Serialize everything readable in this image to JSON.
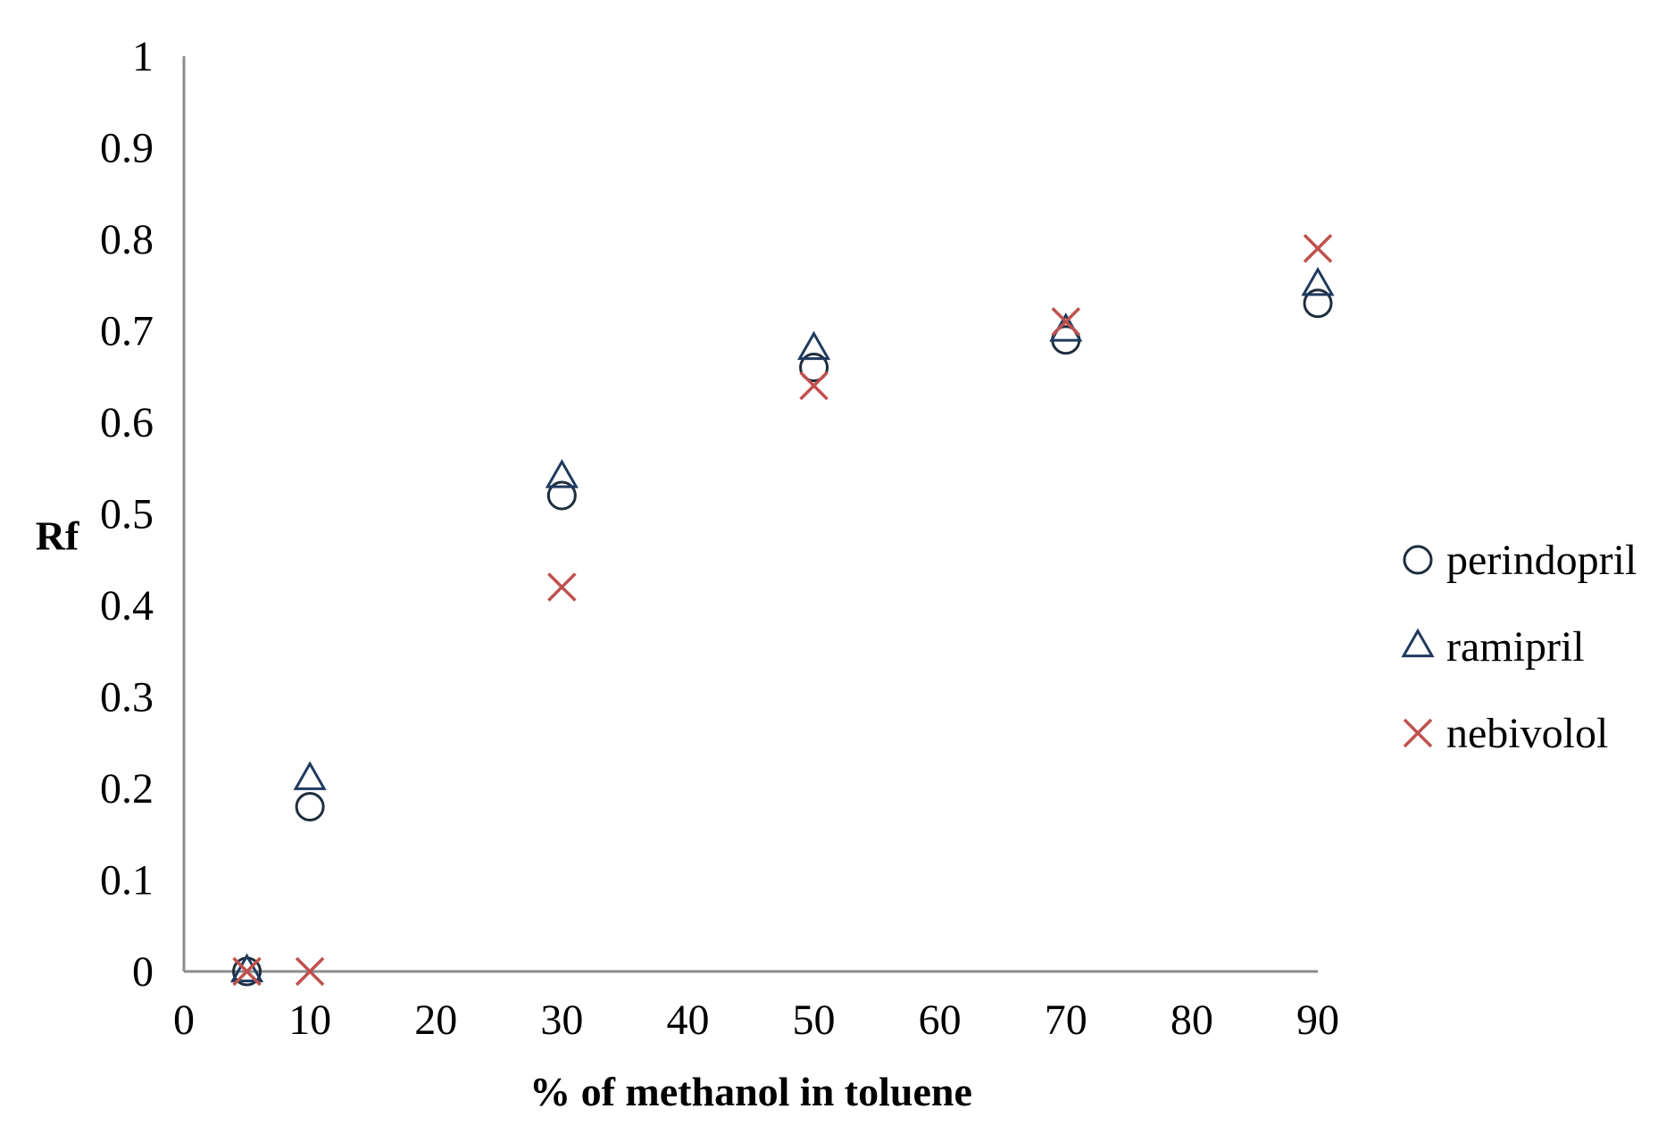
{
  "chart_data": {
    "type": "scatter",
    "title": "",
    "xlabel": "% of methanol in toluene",
    "ylabel": "Rf",
    "xlim": [
      0,
      90
    ],
    "ylim": [
      0,
      1
    ],
    "x_ticks": [
      "0",
      "10",
      "20",
      "30",
      "40",
      "50",
      "60",
      "70",
      "80",
      "90"
    ],
    "y_ticks": [
      "0",
      "0.1",
      "0.2",
      "0.3",
      "0.4",
      "0.5",
      "0.6",
      "0.7",
      "0.8",
      "0.9",
      "1"
    ],
    "grid": false,
    "legend_position": "right",
    "series": [
      {
        "name": "perindopril",
        "marker": "circle",
        "color": "#1f2d3d",
        "x": [
          5,
          10,
          30,
          50,
          70,
          90
        ],
        "y": [
          0,
          0.18,
          0.52,
          0.66,
          0.69,
          0.73
        ]
      },
      {
        "name": "ramipril",
        "marker": "triangle",
        "color": "#1f3a5f",
        "x": [
          5,
          10,
          30,
          50,
          70,
          90
        ],
        "y": [
          0,
          0.21,
          0.54,
          0.68,
          0.7,
          0.75
        ]
      },
      {
        "name": "nebivolol",
        "marker": "x",
        "color": "#c0504d",
        "x": [
          5,
          10,
          30,
          50,
          70,
          90
        ],
        "y": [
          0,
          0,
          0.42,
          0.64,
          0.71,
          0.79
        ]
      }
    ]
  }
}
